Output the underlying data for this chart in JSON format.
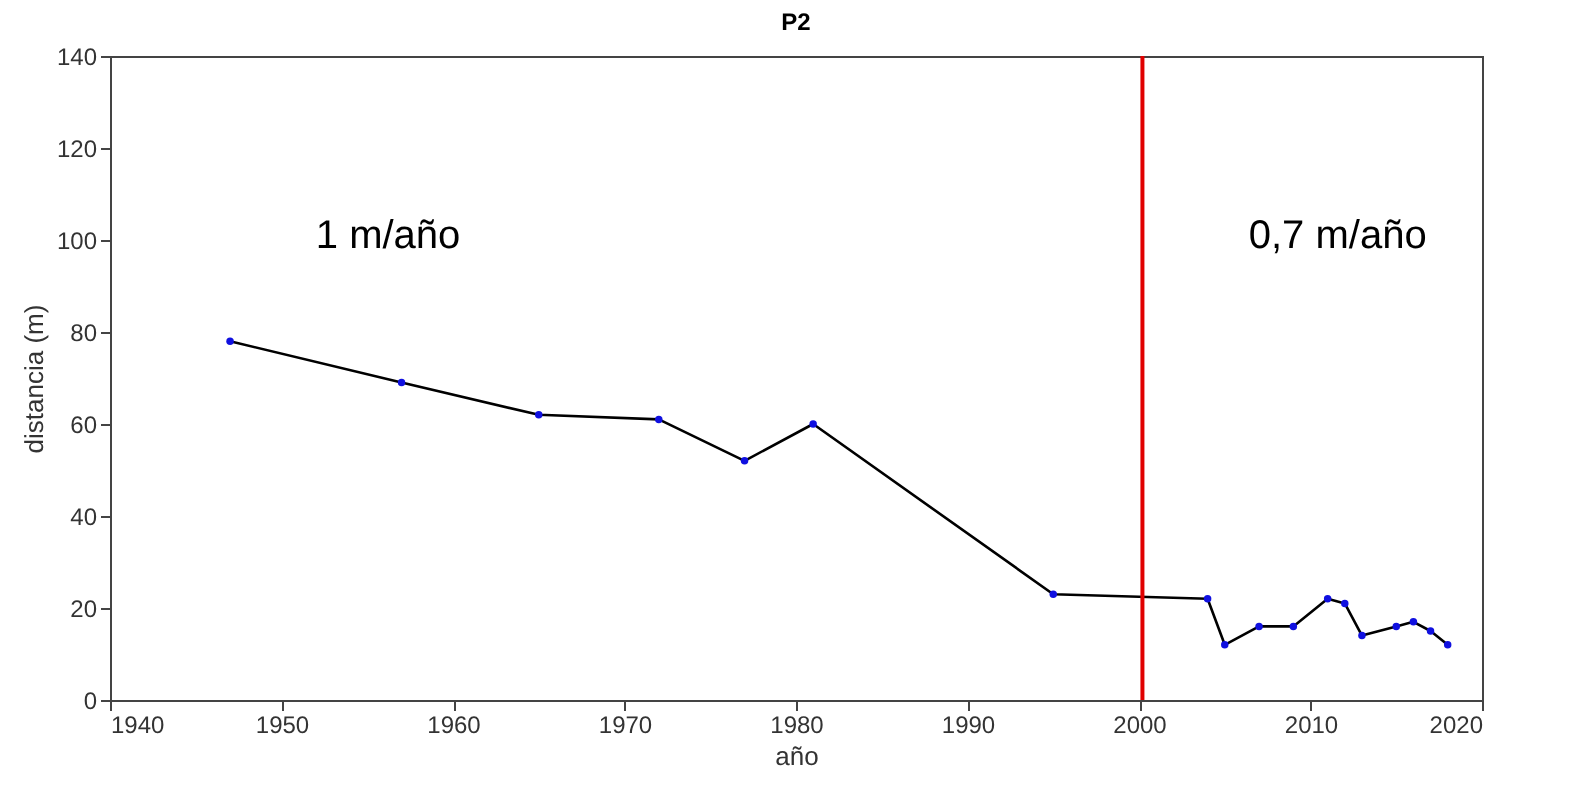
{
  "chart_data": {
    "type": "line",
    "title": "P2",
    "xlabel": "año",
    "ylabel": "distancia (m)",
    "x": [
      1947,
      1957,
      1965,
      1972,
      1977,
      1981,
      1995,
      2004,
      2005,
      2007,
      2009,
      2011,
      2012,
      2013,
      2015,
      2016,
      2017,
      2018
    ],
    "series": [
      {
        "color": "#000000",
        "values": [
          78,
          69,
          62,
          61,
          52,
          60,
          23,
          22,
          12,
          16,
          16,
          22,
          21,
          14,
          16,
          17,
          15,
          12
        ]
      }
    ],
    "xlim": [
      1940,
      2020
    ],
    "xticks": [
      1940,
      1950,
      1960,
      1970,
      1980,
      1990,
      2000,
      2010,
      2020
    ],
    "ylim": [
      0,
      140
    ],
    "yticks": [
      0,
      20,
      40,
      60,
      80,
      100,
      120,
      140
    ],
    "grid": false,
    "marker": "circle",
    "line_style": "solid",
    "ref_lines": [
      {
        "axis": "x",
        "value": 2000.2,
        "color": "#e00000"
      }
    ],
    "annotations": [
      "1 m/año",
      "0,7 m/año"
    ]
  }
}
